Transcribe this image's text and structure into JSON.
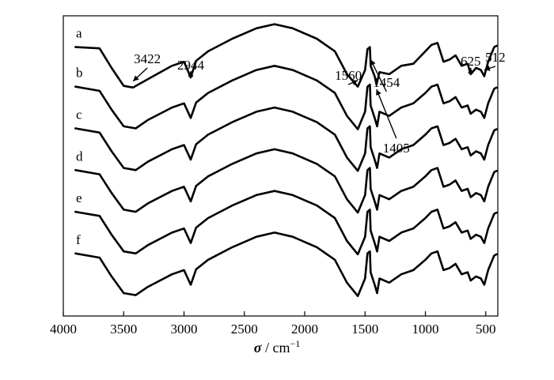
{
  "chart_data": {
    "type": "line",
    "title": "",
    "xlabel": {
      "symbol": "σ",
      "separator": " / ",
      "unit": "cm",
      "exponent": "−1"
    },
    "ylabel": "",
    "xlim": [
      4000,
      400
    ],
    "x_reversed": true,
    "xticks": [
      {
        "value": 4000,
        "label": "4000"
      },
      {
        "value": 3500,
        "label": "3500"
      },
      {
        "value": 3000,
        "label": "3000"
      },
      {
        "value": 2500,
        "label": "2500"
      },
      {
        "value": 2000,
        "label": "2000"
      },
      {
        "value": 1500,
        "label": "1500"
      },
      {
        "value": 1000,
        "label": "1000"
      },
      {
        "value": 500,
        "label": "500"
      }
    ],
    "y_ticks_shown": false,
    "legend": "none",
    "series": [
      {
        "name": "a",
        "offset": 5.0,
        "points": [
          [
            3900,
            0.15
          ],
          [
            3700,
            0.12
          ],
          [
            3600,
            -0.35
          ],
          [
            3500,
            -0.78
          ],
          [
            3422,
            -0.82
          ],
          [
            3300,
            -0.62
          ],
          [
            3100,
            -0.3
          ],
          [
            3000,
            -0.2
          ],
          [
            2944,
            -0.58
          ],
          [
            2900,
            -0.18
          ],
          [
            2800,
            0.05
          ],
          [
            2600,
            0.35
          ],
          [
            2400,
            0.6
          ],
          [
            2250,
            0.7
          ],
          [
            2100,
            0.6
          ],
          [
            1900,
            0.35
          ],
          [
            1750,
            0.05
          ],
          [
            1650,
            -0.5
          ],
          [
            1560,
            -0.8
          ],
          [
            1500,
            -0.4
          ],
          [
            1480,
            0.1
          ],
          [
            1460,
            0.15
          ],
          [
            1454,
            -0.3
          ],
          [
            1420,
            -0.55
          ],
          [
            1405,
            -0.75
          ],
          [
            1380,
            -0.45
          ],
          [
            1300,
            -0.5
          ],
          [
            1200,
            -0.3
          ],
          [
            1100,
            -0.25
          ],
          [
            1000,
            0.05
          ],
          [
            950,
            0.2
          ],
          [
            900,
            0.25
          ],
          [
            850,
            -0.2
          ],
          [
            800,
            -0.15
          ],
          [
            750,
            -0.05
          ],
          [
            700,
            -0.3
          ],
          [
            650,
            -0.25
          ],
          [
            625,
            -0.5
          ],
          [
            580,
            -0.35
          ],
          [
            540,
            -0.4
          ],
          [
            512,
            -0.55
          ],
          [
            480,
            -0.2
          ],
          [
            430,
            0.15
          ],
          [
            410,
            0.18
          ]
        ]
      },
      {
        "name": "b",
        "offset": 4.0,
        "points": [
          [
            3900,
            0.2
          ],
          [
            3700,
            0.1
          ],
          [
            3600,
            -0.35
          ],
          [
            3500,
            -0.75
          ],
          [
            3400,
            -0.8
          ],
          [
            3300,
            -0.6
          ],
          [
            3100,
            -0.3
          ],
          [
            3000,
            -0.2
          ],
          [
            2944,
            -0.55
          ],
          [
            2900,
            -0.18
          ],
          [
            2800,
            0.05
          ],
          [
            2600,
            0.35
          ],
          [
            2400,
            0.6
          ],
          [
            2250,
            0.7
          ],
          [
            2100,
            0.6
          ],
          [
            1900,
            0.35
          ],
          [
            1750,
            0.05
          ],
          [
            1650,
            -0.5
          ],
          [
            1560,
            -0.82
          ],
          [
            1500,
            -0.4
          ],
          [
            1480,
            0.2
          ],
          [
            1460,
            0.25
          ],
          [
            1454,
            -0.25
          ],
          [
            1420,
            -0.55
          ],
          [
            1400,
            -0.75
          ],
          [
            1380,
            -0.4
          ],
          [
            1300,
            -0.5
          ],
          [
            1200,
            -0.3
          ],
          [
            1100,
            -0.2
          ],
          [
            1000,
            0.05
          ],
          [
            950,
            0.2
          ],
          [
            900,
            0.25
          ],
          [
            850,
            -0.2
          ],
          [
            800,
            -0.15
          ],
          [
            750,
            -0.05
          ],
          [
            700,
            -0.3
          ],
          [
            650,
            -0.25
          ],
          [
            625,
            -0.45
          ],
          [
            580,
            -0.35
          ],
          [
            540,
            -0.4
          ],
          [
            512,
            -0.55
          ],
          [
            480,
            -0.2
          ],
          [
            430,
            0.15
          ],
          [
            410,
            0.18
          ]
        ]
      },
      {
        "name": "c",
        "offset": 3.0,
        "points": [
          [
            3900,
            0.2
          ],
          [
            3700,
            0.1
          ],
          [
            3600,
            -0.35
          ],
          [
            3500,
            -0.75
          ],
          [
            3400,
            -0.8
          ],
          [
            3300,
            -0.6
          ],
          [
            3100,
            -0.3
          ],
          [
            3000,
            -0.2
          ],
          [
            2944,
            -0.55
          ],
          [
            2900,
            -0.18
          ],
          [
            2800,
            0.05
          ],
          [
            2600,
            0.35
          ],
          [
            2400,
            0.6
          ],
          [
            2250,
            0.7
          ],
          [
            2100,
            0.6
          ],
          [
            1900,
            0.35
          ],
          [
            1750,
            0.05
          ],
          [
            1650,
            -0.5
          ],
          [
            1560,
            -0.82
          ],
          [
            1500,
            -0.4
          ],
          [
            1480,
            0.2
          ],
          [
            1460,
            0.25
          ],
          [
            1454,
            -0.25
          ],
          [
            1420,
            -0.55
          ],
          [
            1400,
            -0.75
          ],
          [
            1380,
            -0.4
          ],
          [
            1300,
            -0.5
          ],
          [
            1200,
            -0.3
          ],
          [
            1100,
            -0.2
          ],
          [
            1000,
            0.05
          ],
          [
            950,
            0.2
          ],
          [
            900,
            0.25
          ],
          [
            850,
            -0.2
          ],
          [
            800,
            -0.15
          ],
          [
            750,
            -0.05
          ],
          [
            700,
            -0.3
          ],
          [
            650,
            -0.25
          ],
          [
            625,
            -0.45
          ],
          [
            580,
            -0.35
          ],
          [
            540,
            -0.4
          ],
          [
            512,
            -0.55
          ],
          [
            480,
            -0.2
          ],
          [
            430,
            0.15
          ],
          [
            410,
            0.18
          ]
        ]
      },
      {
        "name": "d",
        "offset": 2.0,
        "points": [
          [
            3900,
            0.2
          ],
          [
            3700,
            0.1
          ],
          [
            3600,
            -0.35
          ],
          [
            3500,
            -0.75
          ],
          [
            3400,
            -0.8
          ],
          [
            3300,
            -0.6
          ],
          [
            3100,
            -0.3
          ],
          [
            3000,
            -0.2
          ],
          [
            2944,
            -0.55
          ],
          [
            2900,
            -0.18
          ],
          [
            2800,
            0.05
          ],
          [
            2600,
            0.35
          ],
          [
            2400,
            0.6
          ],
          [
            2250,
            0.7
          ],
          [
            2100,
            0.6
          ],
          [
            1900,
            0.35
          ],
          [
            1750,
            0.05
          ],
          [
            1650,
            -0.5
          ],
          [
            1560,
            -0.82
          ],
          [
            1500,
            -0.4
          ],
          [
            1480,
            0.2
          ],
          [
            1460,
            0.25
          ],
          [
            1454,
            -0.25
          ],
          [
            1420,
            -0.55
          ],
          [
            1400,
            -0.75
          ],
          [
            1380,
            -0.4
          ],
          [
            1300,
            -0.5
          ],
          [
            1200,
            -0.3
          ],
          [
            1100,
            -0.2
          ],
          [
            1000,
            0.05
          ],
          [
            950,
            0.2
          ],
          [
            900,
            0.25
          ],
          [
            850,
            -0.2
          ],
          [
            800,
            -0.15
          ],
          [
            750,
            -0.05
          ],
          [
            700,
            -0.3
          ],
          [
            650,
            -0.25
          ],
          [
            625,
            -0.45
          ],
          [
            580,
            -0.35
          ],
          [
            540,
            -0.4
          ],
          [
            512,
            -0.55
          ],
          [
            480,
            -0.2
          ],
          [
            430,
            0.15
          ],
          [
            410,
            0.18
          ]
        ]
      },
      {
        "name": "e",
        "offset": 1.0,
        "points": [
          [
            3900,
            0.2
          ],
          [
            3700,
            0.1
          ],
          [
            3600,
            -0.35
          ],
          [
            3500,
            -0.75
          ],
          [
            3400,
            -0.8
          ],
          [
            3300,
            -0.6
          ],
          [
            3100,
            -0.3
          ],
          [
            3000,
            -0.2
          ],
          [
            2944,
            -0.55
          ],
          [
            2900,
            -0.18
          ],
          [
            2800,
            0.05
          ],
          [
            2600,
            0.35
          ],
          [
            2400,
            0.6
          ],
          [
            2250,
            0.7
          ],
          [
            2100,
            0.6
          ],
          [
            1900,
            0.35
          ],
          [
            1750,
            0.05
          ],
          [
            1650,
            -0.5
          ],
          [
            1560,
            -0.82
          ],
          [
            1500,
            -0.4
          ],
          [
            1480,
            0.2
          ],
          [
            1460,
            0.25
          ],
          [
            1454,
            -0.25
          ],
          [
            1420,
            -0.55
          ],
          [
            1400,
            -0.75
          ],
          [
            1380,
            -0.4
          ],
          [
            1300,
            -0.5
          ],
          [
            1200,
            -0.3
          ],
          [
            1100,
            -0.2
          ],
          [
            1000,
            0.05
          ],
          [
            950,
            0.2
          ],
          [
            900,
            0.25
          ],
          [
            850,
            -0.2
          ],
          [
            800,
            -0.15
          ],
          [
            750,
            -0.05
          ],
          [
            700,
            -0.3
          ],
          [
            650,
            -0.25
          ],
          [
            625,
            -0.45
          ],
          [
            580,
            -0.35
          ],
          [
            540,
            -0.4
          ],
          [
            512,
            -0.55
          ],
          [
            480,
            -0.2
          ],
          [
            430,
            0.15
          ],
          [
            410,
            0.18
          ]
        ]
      },
      {
        "name": "f",
        "offset": 0.0,
        "points": [
          [
            3900,
            0.2
          ],
          [
            3700,
            0.1
          ],
          [
            3600,
            -0.35
          ],
          [
            3500,
            -0.75
          ],
          [
            3400,
            -0.8
          ],
          [
            3300,
            -0.6
          ],
          [
            3100,
            -0.3
          ],
          [
            3000,
            -0.2
          ],
          [
            2944,
            -0.55
          ],
          [
            2900,
            -0.18
          ],
          [
            2800,
            0.05
          ],
          [
            2600,
            0.35
          ],
          [
            2400,
            0.6
          ],
          [
            2250,
            0.7
          ],
          [
            2100,
            0.6
          ],
          [
            1900,
            0.35
          ],
          [
            1750,
            0.05
          ],
          [
            1650,
            -0.5
          ],
          [
            1560,
            -0.82
          ],
          [
            1500,
            -0.4
          ],
          [
            1480,
            0.2
          ],
          [
            1460,
            0.25
          ],
          [
            1454,
            -0.25
          ],
          [
            1420,
            -0.55
          ],
          [
            1400,
            -0.75
          ],
          [
            1380,
            -0.4
          ],
          [
            1300,
            -0.5
          ],
          [
            1200,
            -0.3
          ],
          [
            1100,
            -0.2
          ],
          [
            1000,
            0.05
          ],
          [
            950,
            0.2
          ],
          [
            900,
            0.25
          ],
          [
            850,
            -0.2
          ],
          [
            800,
            -0.15
          ],
          [
            750,
            -0.05
          ],
          [
            700,
            -0.3
          ],
          [
            650,
            -0.25
          ],
          [
            625,
            -0.45
          ],
          [
            580,
            -0.35
          ],
          [
            540,
            -0.4
          ],
          [
            512,
            -0.55
          ],
          [
            480,
            -0.2
          ],
          [
            430,
            0.15
          ],
          [
            410,
            0.18
          ]
        ]
      }
    ],
    "annotations": [
      {
        "text": "3422",
        "x": 3422,
        "series": "a"
      },
      {
        "text": "2944",
        "x": 2944,
        "series": "a"
      },
      {
        "text": "1560",
        "x": 1560,
        "series": "a"
      },
      {
        "text": "1454",
        "x": 1454,
        "series": "a"
      },
      {
        "text": "1405",
        "x": 1405,
        "series": "a"
      },
      {
        "text": "625",
        "x": 625,
        "series": "a"
      },
      {
        "text": "512",
        "x": 512,
        "series": "a"
      }
    ],
    "ylim": [
      -1.3,
      5.9
    ]
  }
}
